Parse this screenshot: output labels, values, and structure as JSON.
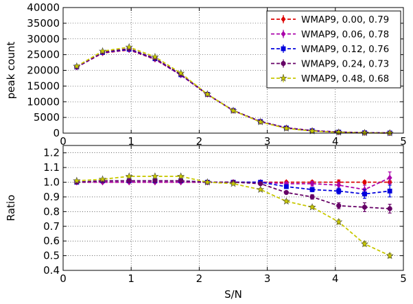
{
  "chart_data": [
    {
      "type": "line",
      "panel": "top",
      "ylabel": "peak count",
      "xlabel": "",
      "xlim": [
        0,
        5
      ],
      "ylim": [
        0,
        40000
      ],
      "grid": true,
      "legend_position": "top-right",
      "x_ticks": [
        "0",
        "1",
        "2",
        "3",
        "4",
        "5"
      ],
      "y_ticks": [
        "0",
        "5000",
        "10000",
        "15000",
        "20000",
        "25000",
        "30000",
        "35000",
        "40000"
      ],
      "x": [
        0.2,
        0.58,
        0.97,
        1.35,
        1.73,
        2.12,
        2.5,
        2.9,
        3.28,
        3.66,
        4.05,
        4.43,
        4.8
      ],
      "series": [
        {
          "name": "WMAP9, 0.00, 0.79",
          "color": "#dd0000",
          "marker": "diamond",
          "values": [
            21000,
            25500,
            26500,
            23500,
            18500,
            12300,
            7200,
            3700,
            1700,
            800,
            350,
            130,
            50
          ]
        },
        {
          "name": "WMAP9, 0.06, 0.78",
          "color": "#aa00aa",
          "marker": "diamond",
          "values": [
            21000,
            25600,
            26600,
            23600,
            18500,
            12300,
            7200,
            3700,
            1700,
            790,
            340,
            125,
            50
          ]
        },
        {
          "name": "WMAP9, 0.12, 0.76",
          "color": "#0000dd",
          "marker": "square",
          "values": [
            21050,
            25700,
            26700,
            23700,
            18600,
            12350,
            7200,
            3700,
            1650,
            760,
            320,
            120,
            48
          ]
        },
        {
          "name": "WMAP9, 0.24, 0.73",
          "color": "#660066",
          "marker": "circle",
          "values": [
            21100,
            25800,
            26900,
            23800,
            18700,
            12400,
            7200,
            3650,
            1600,
            720,
            295,
            110,
            42
          ]
        },
        {
          "name": "WMAP9, 0.48, 0.68",
          "color": "#c8c800",
          "marker": "star",
          "values": [
            21300,
            26100,
            27400,
            24300,
            19100,
            12400,
            7150,
            3550,
            1500,
            660,
            255,
            76,
            25
          ]
        }
      ]
    },
    {
      "type": "line",
      "panel": "bottom",
      "ylabel": "Ratio",
      "xlabel": "S/N",
      "xlim": [
        0,
        5
      ],
      "ylim": [
        0.4,
        1.25
      ],
      "grid": true,
      "x_ticks": [
        "0",
        "1",
        "2",
        "3",
        "4",
        "5"
      ],
      "y_ticks": [
        "0.4",
        "0.5",
        "0.6",
        "0.7",
        "0.8",
        "0.9",
        "1.0",
        "1.1",
        "1.2"
      ],
      "x": [
        0.2,
        0.58,
        0.97,
        1.35,
        1.73,
        2.12,
        2.5,
        2.9,
        3.28,
        3.66,
        4.05,
        4.43,
        4.8
      ],
      "series": [
        {
          "name": "WMAP9, 0.00, 0.79",
          "color": "#dd0000",
          "marker": "diamond",
          "values": [
            1.0,
            1.0,
            1.0,
            1.0,
            1.0,
            1.0,
            1.0,
            1.0,
            1.0,
            1.0,
            1.0,
            1.0,
            1.0
          ],
          "errors": [
            0.005,
            0.005,
            0.005,
            0.005,
            0.005,
            0.005,
            0.005,
            0.006,
            0.008,
            0.01,
            0.015,
            0.01,
            0.01
          ]
        },
        {
          "name": "WMAP9, 0.06, 0.78",
          "color": "#aa00aa",
          "marker": "diamond",
          "values": [
            1.0,
            1.0,
            1.0,
            1.0,
            1.0,
            1.0,
            1.0,
            1.0,
            0.99,
            0.99,
            0.98,
            0.95,
            1.03
          ],
          "errors": [
            0.005,
            0.005,
            0.005,
            0.005,
            0.005,
            0.005,
            0.006,
            0.008,
            0.01,
            0.015,
            0.02,
            0.03,
            0.04
          ]
        },
        {
          "name": "WMAP9, 0.12, 0.76",
          "color": "#0000dd",
          "marker": "square",
          "values": [
            1.0,
            1.01,
            1.01,
            1.01,
            1.01,
            1.0,
            1.0,
            1.0,
            0.97,
            0.95,
            0.94,
            0.92,
            0.94
          ],
          "errors": [
            0.005,
            0.005,
            0.005,
            0.005,
            0.005,
            0.005,
            0.006,
            0.008,
            0.01,
            0.015,
            0.02,
            0.03,
            0.04
          ]
        },
        {
          "name": "WMAP9, 0.24, 0.73",
          "color": "#660066",
          "marker": "circle",
          "values": [
            1.0,
            1.01,
            1.01,
            1.01,
            1.01,
            1.0,
            1.0,
            0.99,
            0.93,
            0.9,
            0.84,
            0.83,
            0.82
          ],
          "errors": [
            0.005,
            0.005,
            0.005,
            0.005,
            0.005,
            0.005,
            0.006,
            0.008,
            0.01,
            0.015,
            0.02,
            0.03,
            0.03
          ]
        },
        {
          "name": "WMAP9, 0.48, 0.68",
          "color": "#c8c800",
          "marker": "star",
          "values": [
            1.01,
            1.02,
            1.04,
            1.04,
            1.04,
            1.0,
            0.99,
            0.95,
            0.87,
            0.83,
            0.73,
            0.58,
            0.5
          ],
          "errors": [
            0.005,
            0.005,
            0.005,
            0.005,
            0.005,
            0.005,
            0.006,
            0.008,
            0.01,
            0.01,
            0.015,
            0.015,
            0.015
          ]
        }
      ]
    }
  ]
}
